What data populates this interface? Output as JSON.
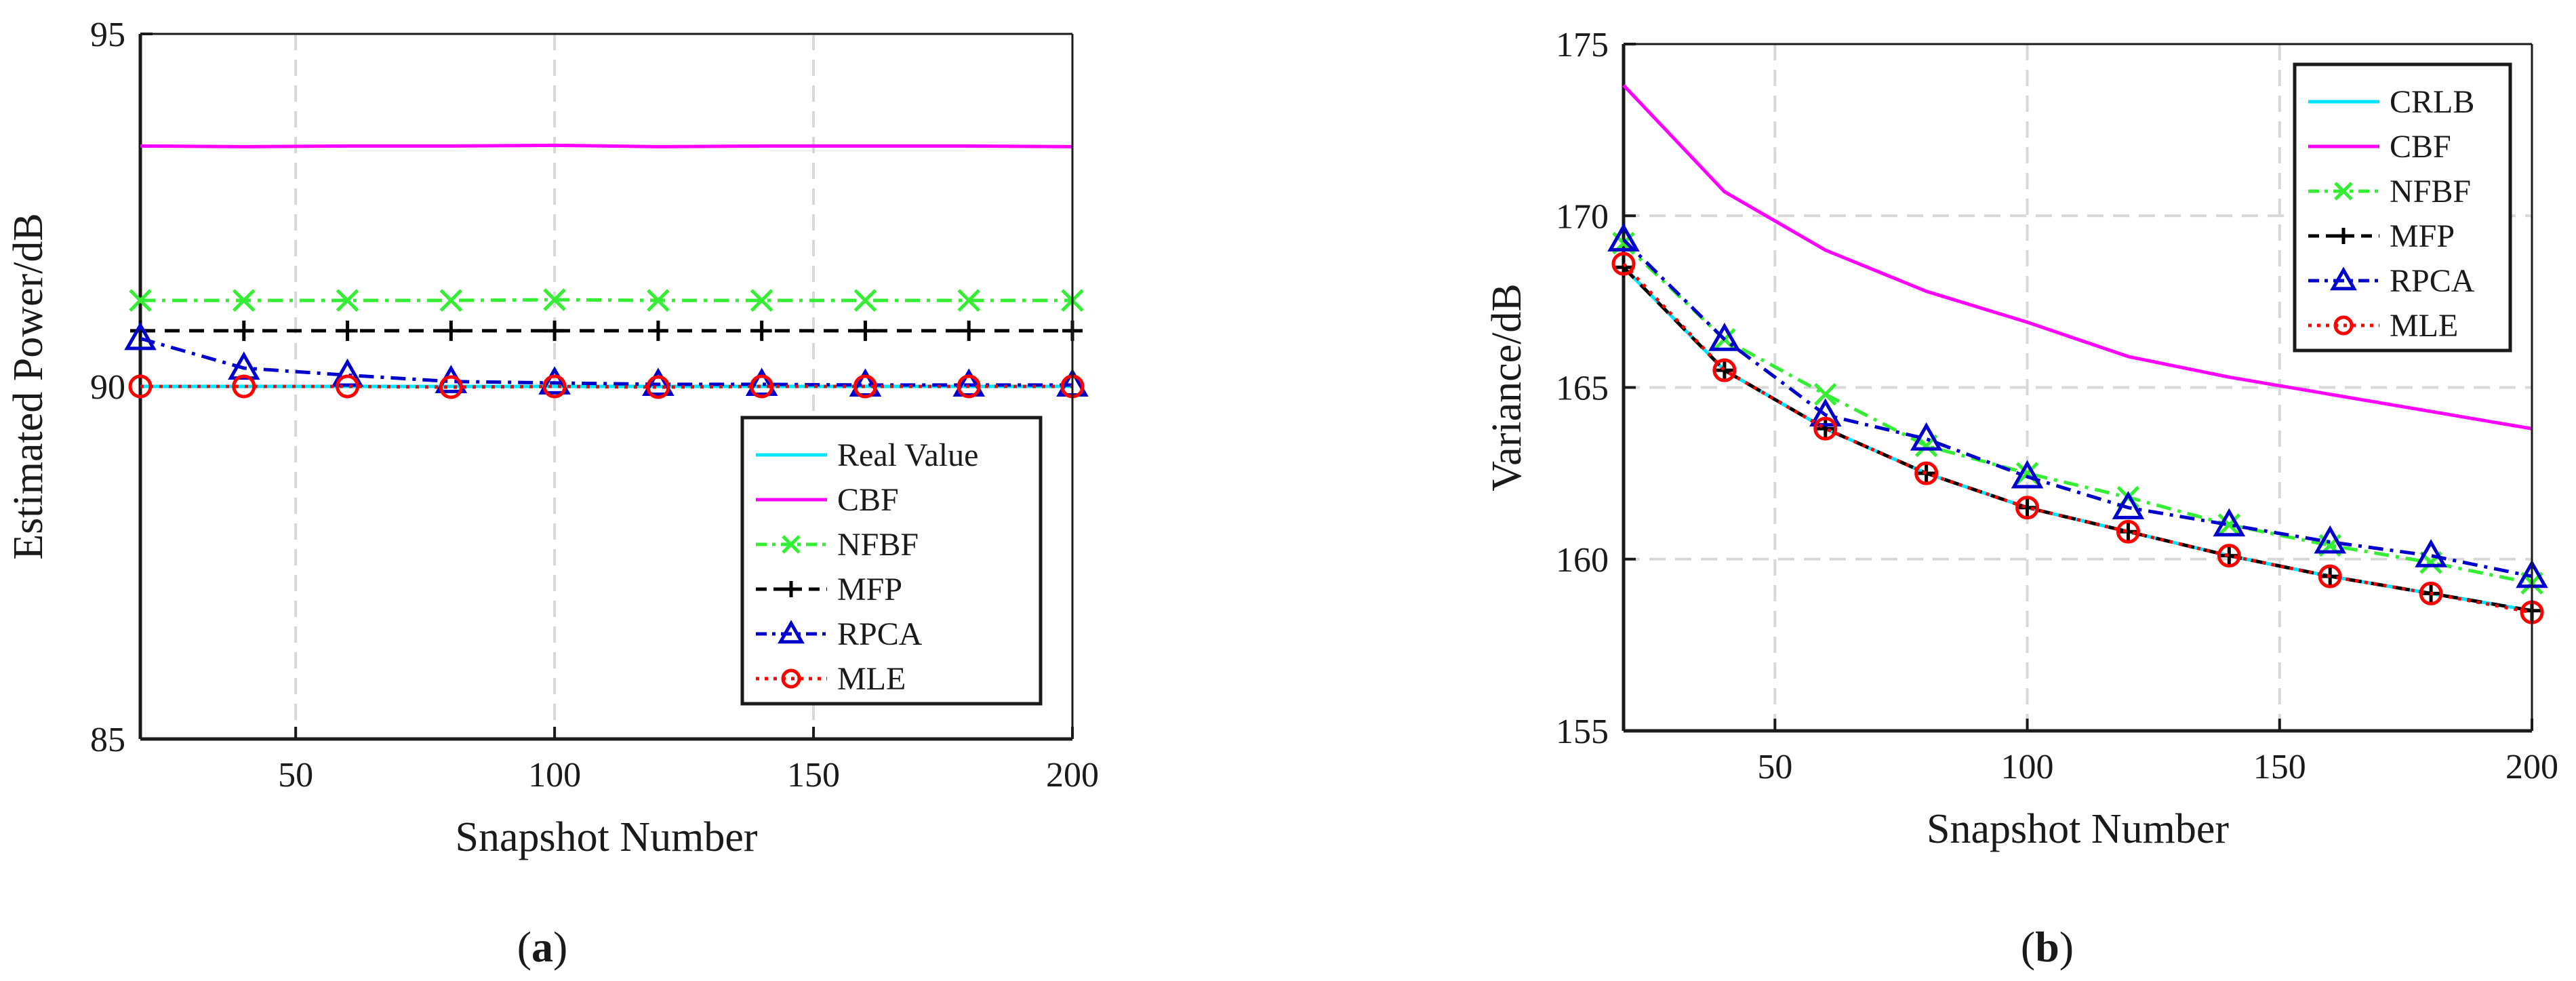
{
  "chart_data": [
    {
      "id": "a",
      "type": "line",
      "caption": "a",
      "xlabel": "Snapshot Number",
      "ylabel": "Estimated Power/dB",
      "xlim": [
        20,
        200
      ],
      "ylim": [
        85,
        95
      ],
      "xticks": [
        50,
        100,
        150,
        200
      ],
      "yticks": [
        85,
        90,
        95
      ],
      "grid": true,
      "legend_position": "bottom-right",
      "x": [
        20,
        40,
        60,
        80,
        100,
        120,
        140,
        160,
        180,
        200
      ],
      "series": [
        {
          "name": "Real Value",
          "color": "#00e5ff",
          "dash": "solid",
          "marker": "none",
          "values": [
            90,
            90,
            90,
            90,
            90,
            90,
            90,
            90,
            90,
            90
          ]
        },
        {
          "name": "CBF",
          "color": "#ff00ff",
          "dash": "solid",
          "marker": "none",
          "values": [
            93.41,
            93.4,
            93.41,
            93.41,
            93.42,
            93.4,
            93.41,
            93.41,
            93.41,
            93.4
          ]
        },
        {
          "name": "NFBF",
          "color": "#33ee33",
          "dash": "dashdot",
          "marker": "x",
          "values": [
            91.22,
            91.22,
            91.22,
            91.22,
            91.23,
            91.22,
            91.22,
            91.22,
            91.22,
            91.22
          ]
        },
        {
          "name": "MFP",
          "color": "#000000",
          "dash": "dash",
          "marker": "plus",
          "values": [
            90.79,
            90.79,
            90.79,
            90.79,
            90.79,
            90.79,
            90.79,
            90.79,
            90.79,
            90.79
          ]
        },
        {
          "name": "RPCA",
          "color": "#0000cc",
          "dash": "dashdot",
          "marker": "triangle",
          "values": [
            90.68,
            90.26,
            90.16,
            90.07,
            90.05,
            90.03,
            90.03,
            90.02,
            90.02,
            90.02
          ]
        },
        {
          "name": "MLE",
          "color": "#ff0000",
          "dash": "dot",
          "marker": "circle",
          "values": [
            90.0,
            90.0,
            90.0,
            89.99,
            90.0,
            89.99,
            90.0,
            90.0,
            90.0,
            90.0
          ]
        }
      ]
    },
    {
      "id": "b",
      "type": "line",
      "caption": "b",
      "xlabel": "Snapshot Number",
      "ylabel": "Variance/dB",
      "xlim": [
        20,
        200
      ],
      "ylim": [
        155,
        175
      ],
      "xticks": [
        50,
        100,
        150,
        200
      ],
      "yticks": [
        155,
        160,
        165,
        170,
        175
      ],
      "grid": true,
      "legend_position": "top-right",
      "x": [
        20,
        40,
        60,
        80,
        100,
        120,
        140,
        160,
        180,
        200
      ],
      "series": [
        {
          "name": "CRLB",
          "color": "#00e5ff",
          "dash": "solid",
          "marker": "none",
          "values": [
            168.5,
            165.5,
            163.8,
            162.5,
            161.5,
            160.8,
            160.1,
            159.5,
            159.0,
            158.5
          ]
        },
        {
          "name": "CBF",
          "color": "#ff00ff",
          "dash": "solid",
          "marker": "none",
          "values": [
            173.8,
            170.7,
            169.0,
            167.8,
            166.9,
            165.9,
            165.3,
            164.8,
            164.3,
            163.8
          ]
        },
        {
          "name": "NFBF",
          "color": "#33ee33",
          "dash": "dashdot",
          "marker": "x",
          "values": [
            169.2,
            166.4,
            164.8,
            163.3,
            162.5,
            161.8,
            161.0,
            160.4,
            159.9,
            159.3
          ]
        },
        {
          "name": "MFP",
          "color": "#000000",
          "dash": "dash",
          "marker": "plus",
          "values": [
            168.5,
            165.5,
            163.8,
            162.5,
            161.5,
            160.8,
            160.1,
            159.5,
            159.0,
            158.5
          ]
        },
        {
          "name": "RPCA",
          "color": "#0000cc",
          "dash": "dashdot",
          "marker": "triangle",
          "values": [
            169.3,
            166.4,
            164.2,
            163.5,
            162.4,
            161.5,
            161.0,
            160.5,
            160.1,
            159.5
          ]
        },
        {
          "name": "MLE",
          "color": "#ff0000",
          "dash": "dot",
          "marker": "circle",
          "values": [
            168.6,
            165.5,
            163.8,
            162.5,
            161.5,
            160.8,
            160.1,
            159.5,
            159.0,
            158.45
          ]
        }
      ]
    }
  ]
}
